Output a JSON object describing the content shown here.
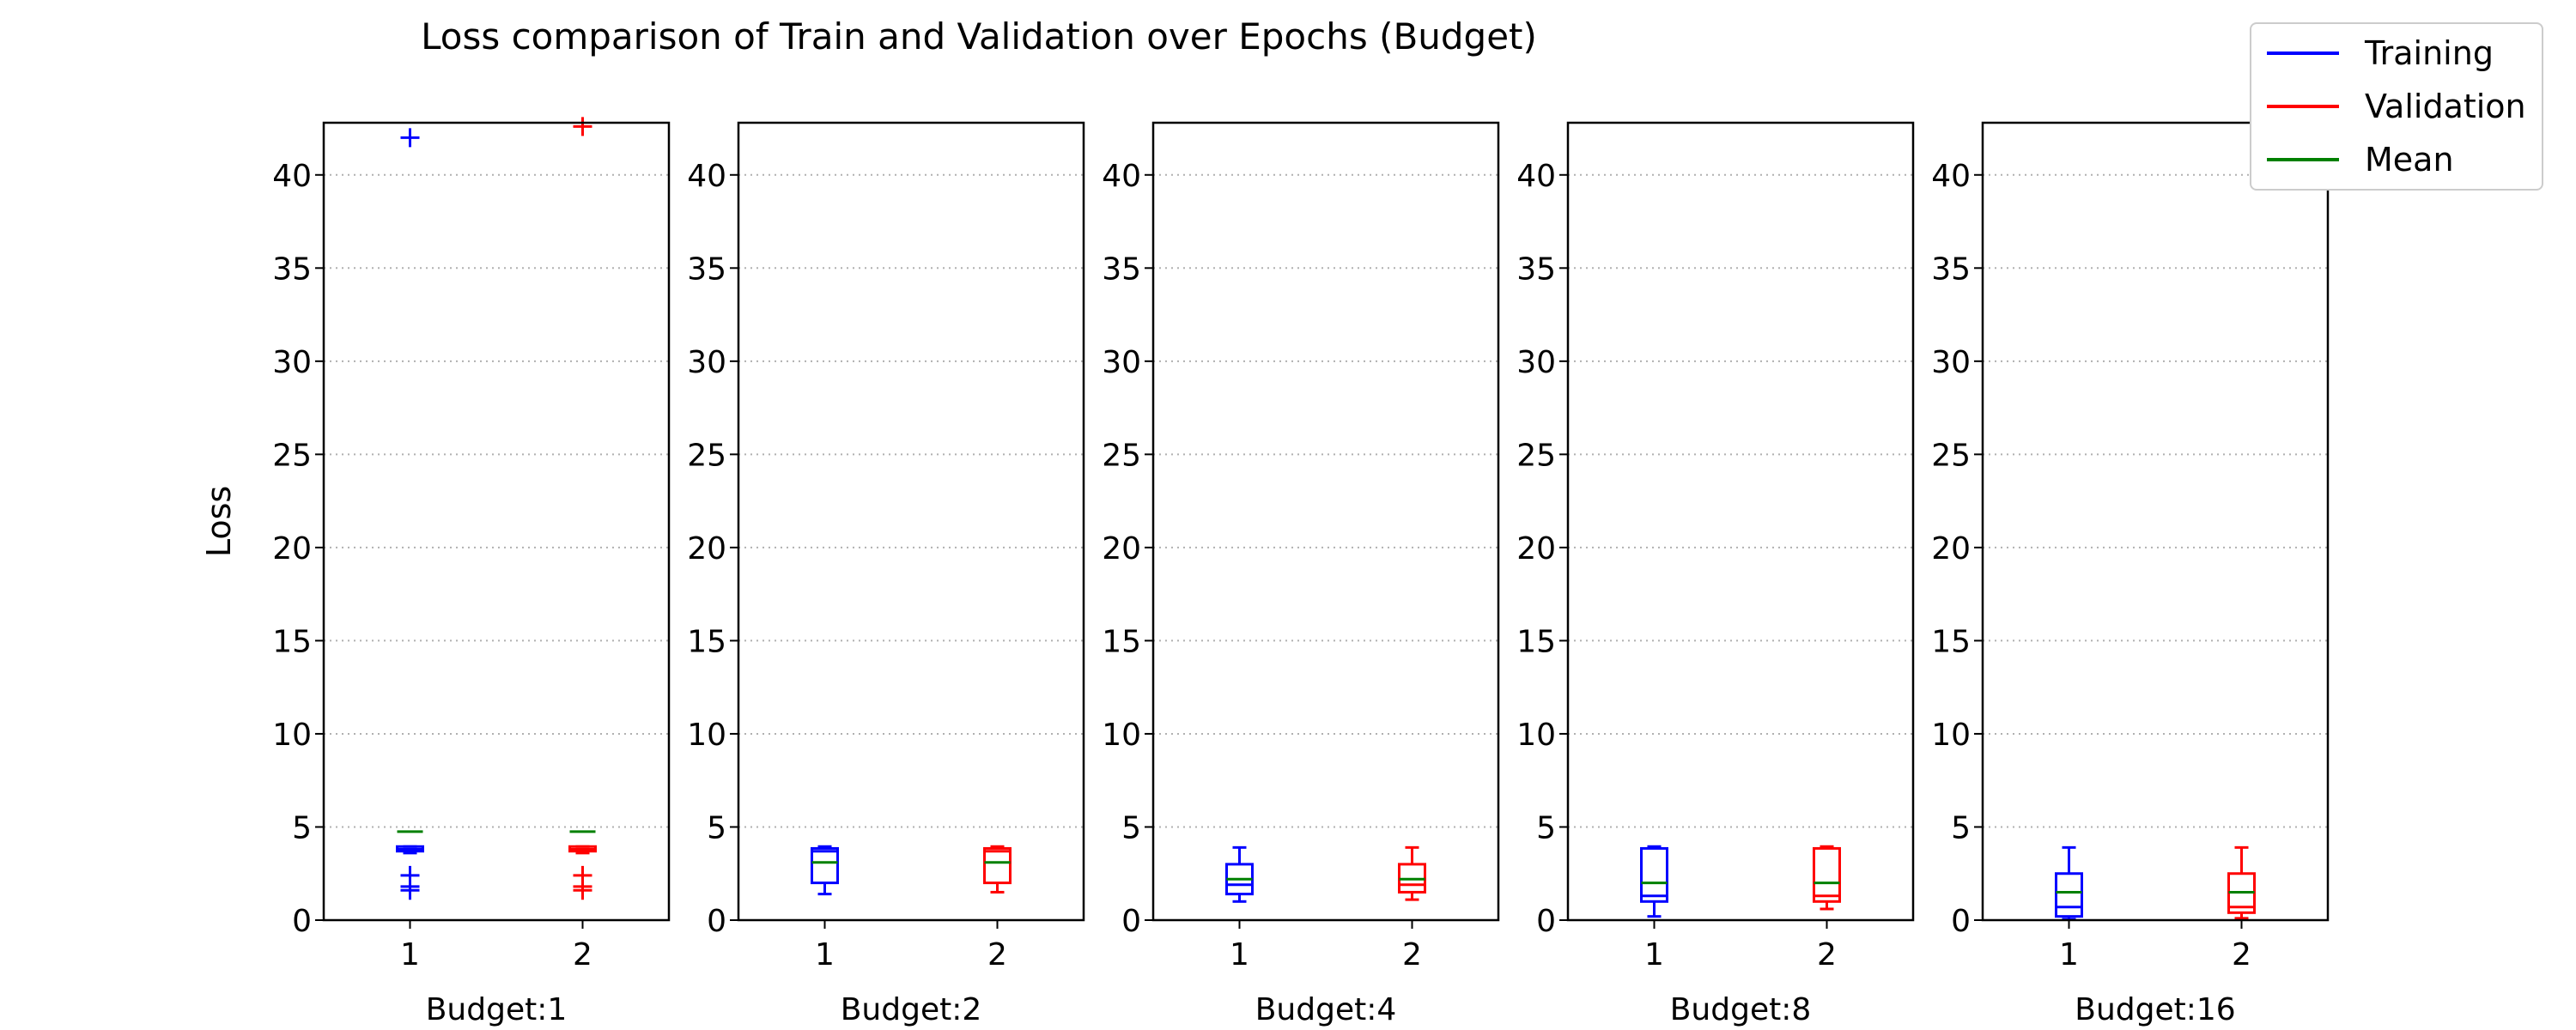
{
  "figure": {
    "title": "Loss comparison of Train and Validation over Epochs (Budget)"
  },
  "legend": {
    "items": [
      {
        "label": "Training",
        "color": "#0000ff"
      },
      {
        "label": "Validation",
        "color": "#ff0000"
      },
      {
        "label": "Mean",
        "color": "#008000"
      }
    ]
  },
  "colors": {
    "training": "#0000ff",
    "validation": "#ff0000",
    "mean": "#008000",
    "grid": "#b0b0b0"
  },
  "chart_data": {
    "type": "box",
    "ylabel": "Loss",
    "ylim": [
      0,
      42.8
    ],
    "yticks": [
      0,
      5,
      10,
      15,
      20,
      25,
      30,
      35,
      40
    ],
    "grid": "y-dotted",
    "legend_position": "top-right",
    "panels": [
      {
        "xlabel": "Budget:1",
        "categories": [
          "1",
          "2"
        ],
        "boxes": [
          {
            "series": "Training",
            "whislo": 3.6,
            "q1": 3.7,
            "med": 3.8,
            "q3": 3.95,
            "whishi": 3.95,
            "mean": 4.75,
            "fliers": [
              42.0,
              2.4,
              1.8,
              1.6
            ]
          },
          {
            "series": "Validation",
            "whislo": 3.6,
            "q1": 3.7,
            "med": 3.8,
            "q3": 3.95,
            "whishi": 3.95,
            "mean": 4.75,
            "fliers": [
              42.6,
              2.4,
              1.8,
              1.6
            ]
          }
        ]
      },
      {
        "xlabel": "Budget:2",
        "categories": [
          "1",
          "2"
        ],
        "boxes": [
          {
            "series": "Training",
            "whislo": 1.4,
            "q1": 2.0,
            "med": 3.7,
            "q3": 3.85,
            "whishi": 3.95,
            "mean": 3.1,
            "fliers": []
          },
          {
            "series": "Validation",
            "whislo": 1.5,
            "q1": 2.0,
            "med": 3.7,
            "q3": 3.85,
            "whishi": 3.95,
            "mean": 3.1,
            "fliers": []
          }
        ]
      },
      {
        "xlabel": "Budget:4",
        "categories": [
          "1",
          "2"
        ],
        "boxes": [
          {
            "series": "Training",
            "whislo": 1.0,
            "q1": 1.4,
            "med": 1.9,
            "q3": 3.0,
            "whishi": 3.9,
            "mean": 2.2,
            "fliers": []
          },
          {
            "series": "Validation",
            "whislo": 1.1,
            "q1": 1.5,
            "med": 1.9,
            "q3": 3.0,
            "whishi": 3.9,
            "mean": 2.2,
            "fliers": []
          }
        ]
      },
      {
        "xlabel": "Budget:8",
        "categories": [
          "1",
          "2"
        ],
        "boxes": [
          {
            "series": "Training",
            "whislo": 0.2,
            "q1": 1.0,
            "med": 1.3,
            "q3": 3.85,
            "whishi": 3.95,
            "mean": 2.0,
            "fliers": []
          },
          {
            "series": "Validation",
            "whislo": 0.6,
            "q1": 1.0,
            "med": 1.3,
            "q3": 3.85,
            "whishi": 3.95,
            "mean": 2.0,
            "fliers": []
          }
        ]
      },
      {
        "xlabel": "Budget:16",
        "categories": [
          "1",
          "2"
        ],
        "boxes": [
          {
            "series": "Training",
            "whislo": 0.05,
            "q1": 0.2,
            "med": 0.7,
            "q3": 2.5,
            "whishi": 3.9,
            "mean": 1.5,
            "fliers": []
          },
          {
            "series": "Validation",
            "whislo": 0.1,
            "q1": 0.4,
            "med": 0.7,
            "q3": 2.5,
            "whishi": 3.9,
            "mean": 1.5,
            "fliers": []
          }
        ]
      }
    ]
  }
}
